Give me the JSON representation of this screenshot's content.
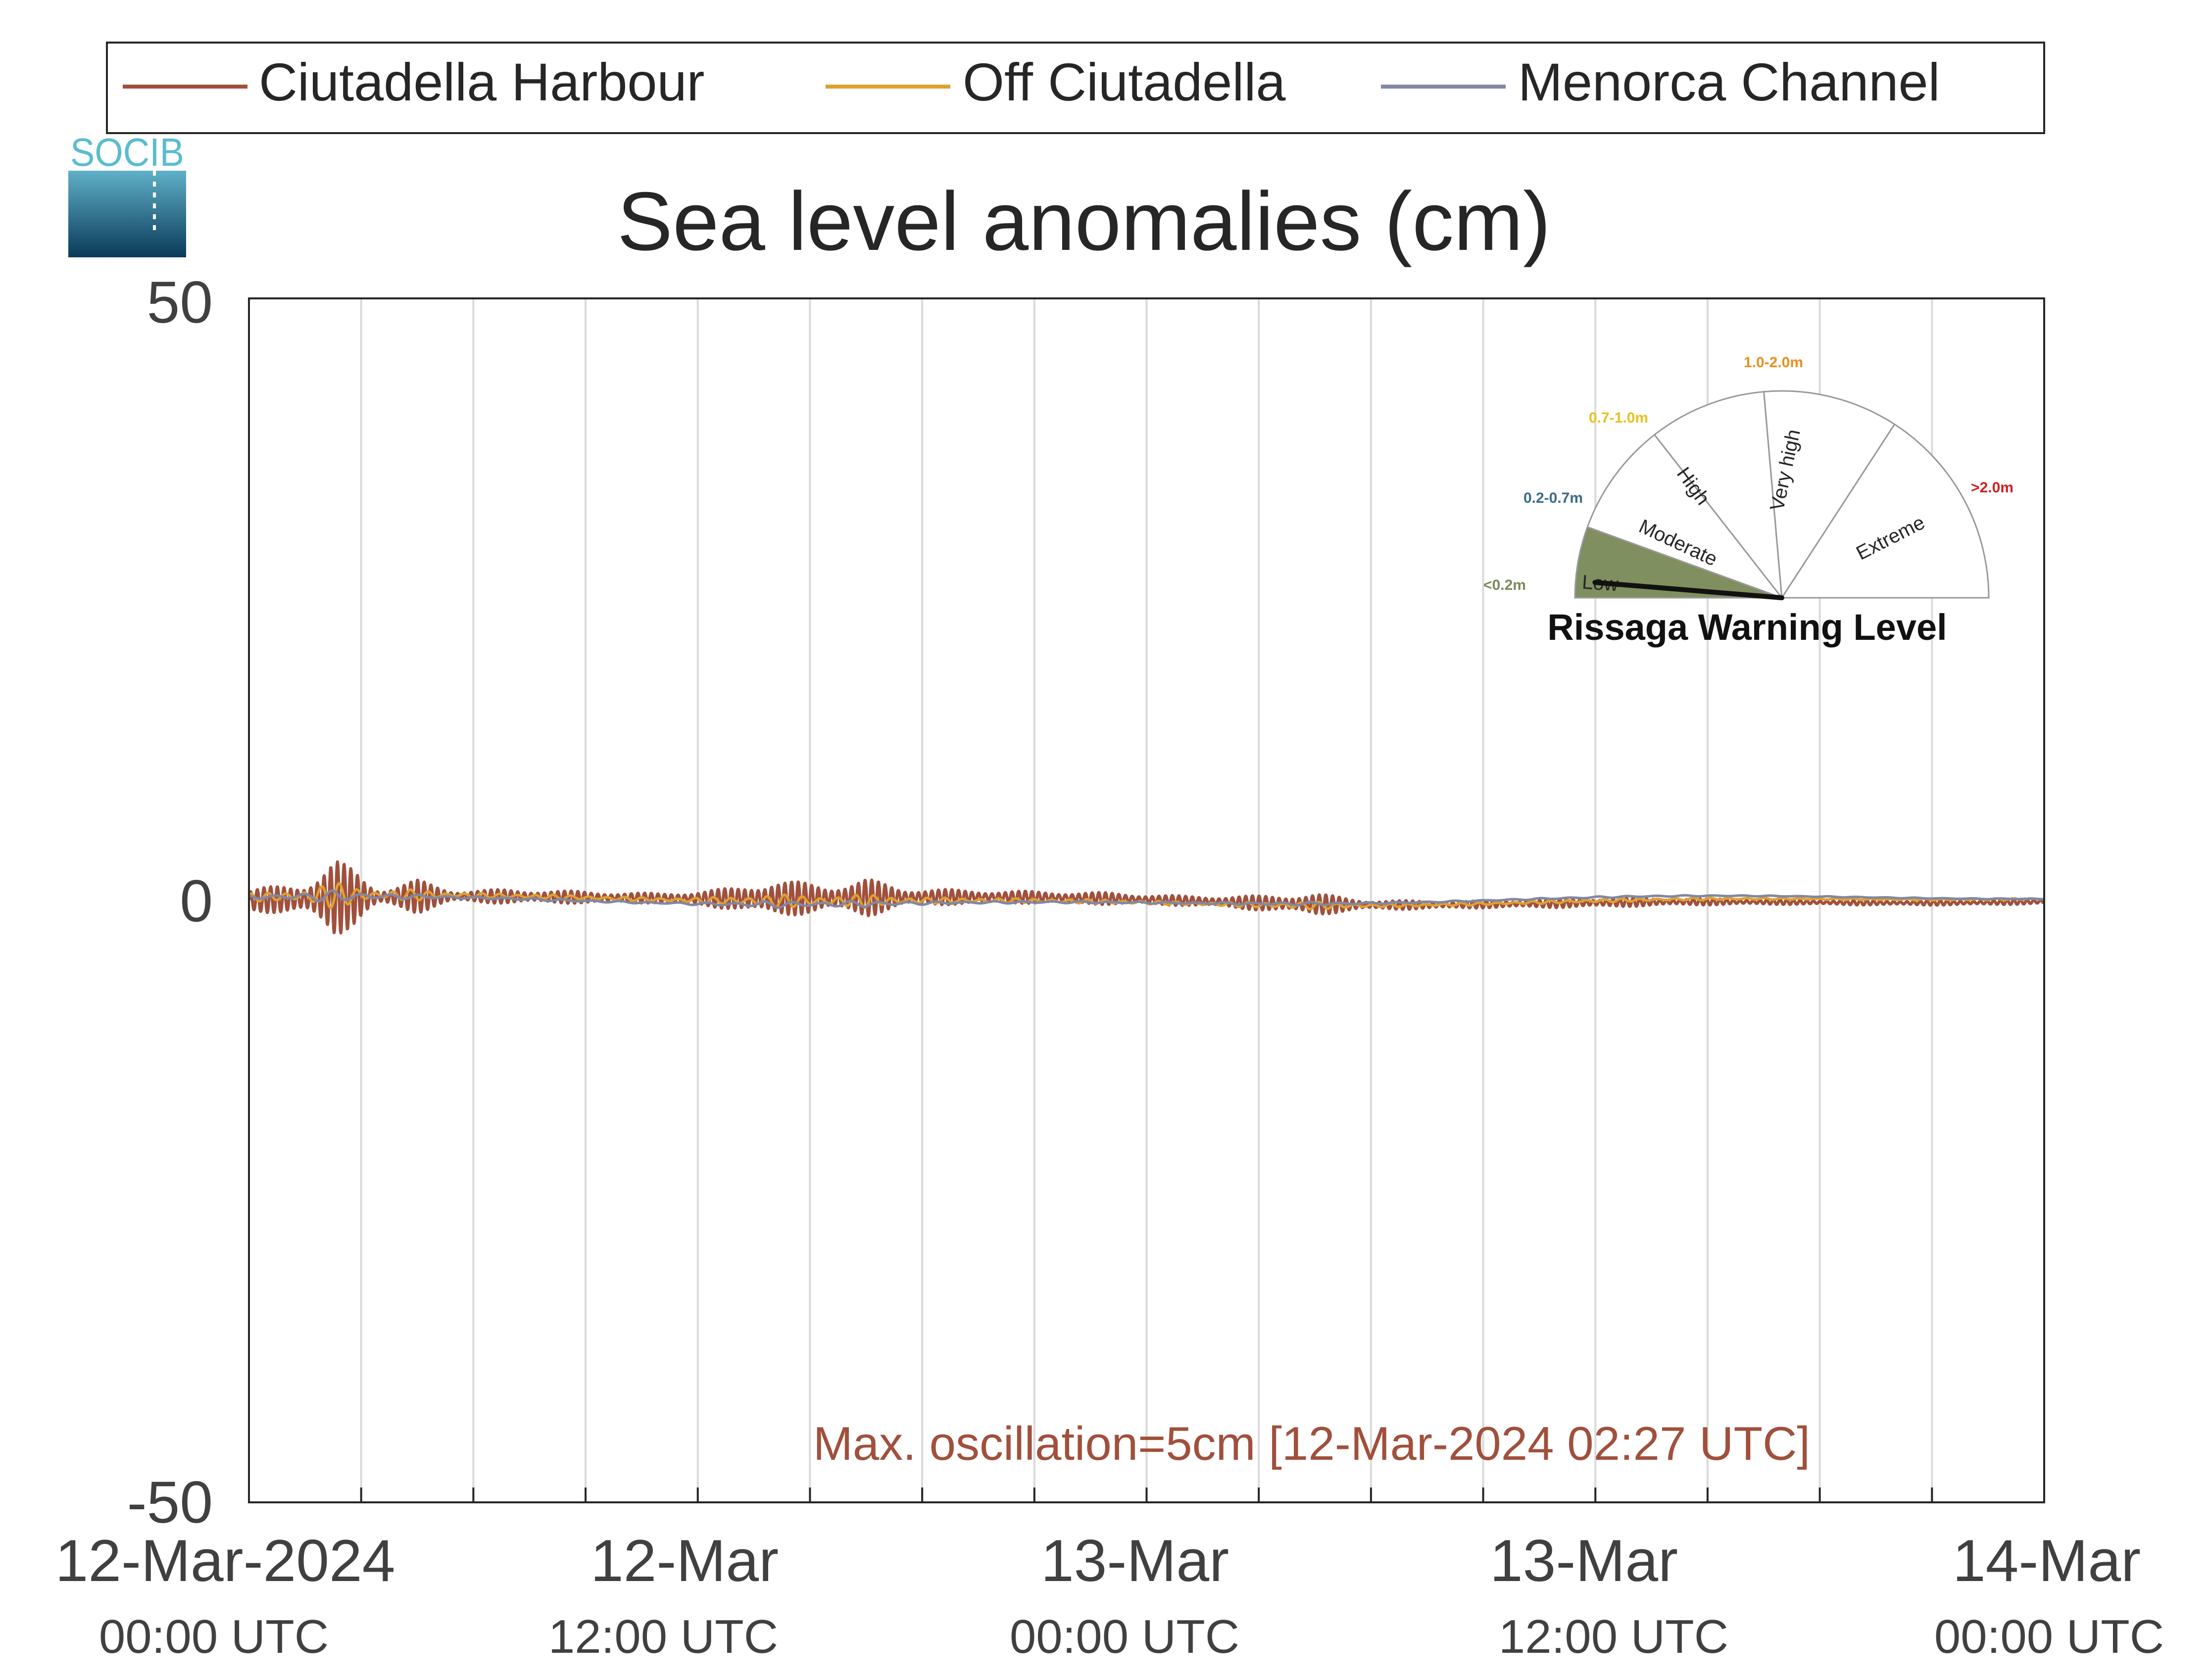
{
  "legend": {
    "entries": [
      {
        "name": "Ciutadella Harbour",
        "color": "#a0503c"
      },
      {
        "name": "Off Ciutadella",
        "color": "#e0a030"
      },
      {
        "name": "Menorca Channel",
        "color": "#8088a4"
      }
    ]
  },
  "logo": {
    "text": "SOCIB"
  },
  "chart_data": {
    "type": "line",
    "title": "Sea level anomalies (cm)",
    "ylim": [
      -50,
      50
    ],
    "yticks": [
      50,
      0,
      -50
    ],
    "xlim_hours": [
      0,
      48
    ],
    "grid": "vertical",
    "xticks": [
      {
        "hour": 0,
        "line1": "12-Mar-2024",
        "line2": "00:00 UTC"
      },
      {
        "hour": 12,
        "line1": "12-Mar",
        "line2": "12:00 UTC"
      },
      {
        "hour": 24,
        "line1": "13-Mar",
        "line2": "00:00 UTC"
      },
      {
        "hour": 36,
        "line1": "13-Mar",
        "line2": "12:00 UTC"
      },
      {
        "hour": 48,
        "line1": "14-Mar",
        "line2": "00:00 UTC"
      }
    ],
    "series": [
      {
        "name": "Ciutadella Harbour",
        "color": "#a0503c"
      },
      {
        "name": "Off Ciutadella",
        "color": "#e0a030"
      },
      {
        "name": "Menorca Channel",
        "color": "#8088a4"
      }
    ],
    "annotation": "Max. oscillation=5cm [12-Mar-2024 02:27 UTC]",
    "annotation_color": "#a0503c"
  },
  "gauge": {
    "title": "Rissaga Warning Level",
    "current_level": "Low",
    "sectors": [
      {
        "label": "Low",
        "range": "<0.2m",
        "range_color": "#7a8a5c",
        "fill": "#7f8f5f"
      },
      {
        "label": "Moderate",
        "range": "0.2-0.7m",
        "range_color": "#3a6a8a",
        "fill": "#ffffff"
      },
      {
        "label": "High",
        "range": "0.7-1.0m",
        "range_color": "#e8c020",
        "fill": "#ffffff"
      },
      {
        "label": "Very high",
        "range": "1.0-2.0m",
        "range_color": "#e89020",
        "fill": "#ffffff"
      },
      {
        "label": "Extreme",
        "range": ">2.0m",
        "range_color": "#d02020",
        "fill": "#ffffff"
      }
    ]
  }
}
